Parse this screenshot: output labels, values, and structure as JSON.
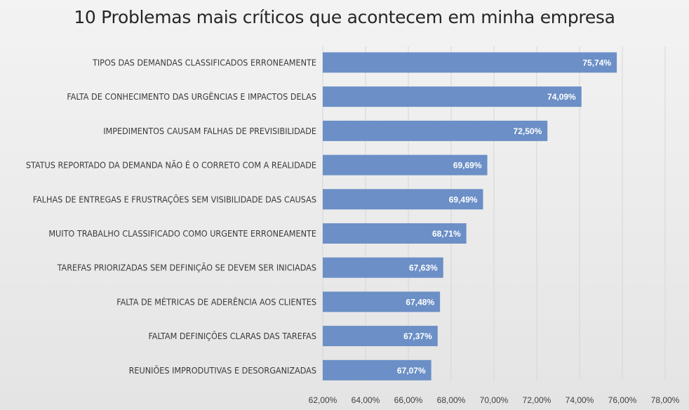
{
  "chart_data": {
    "type": "bar",
    "orientation": "horizontal",
    "title": "10 Problemas mais críticos que acontecem em minha empresa",
    "categories": [
      "TIPOS DAS DEMANDAS CLASSIFICADOS ERRONEAMENTE",
      "FALTA DE CONHECIMENTO DAS URGÊNCIAS E IMPACTOS DELAS",
      "IMPEDIMENTOS CAUSAM FALHAS DE PREVISIBILIDADE",
      "STATUS REPORTADO DA DEMANDA NÃO É O CORRETO COM A REALIDADE",
      "FALHAS DE ENTREGAS E FRUSTRAÇÕES SEM VISIBILIDADE DAS CAUSAS",
      "MUITO TRABALHO CLASSIFICADO COMO URGENTE ERRONEAMENTE",
      "TAREFAS PRIORIZADAS SEM DEFINIÇÃO SE DEVEM SER INICIADAS",
      "FALTA DE MÉTRICAS DE ADERÊNCIA AOS CLIENTES",
      "FALTAM DEFINIÇÕES CLARAS DAS TAREFAS",
      "REUNIÕES IMPRODUTIVAS E DESORGANIZADAS"
    ],
    "values": [
      75.74,
      74.09,
      72.5,
      69.69,
      69.49,
      68.71,
      67.63,
      67.48,
      67.37,
      67.07
    ],
    "data_labels": [
      "75,74%",
      "74,09%",
      "72,50%",
      "69,69%",
      "69,49%",
      "68,71%",
      "67,63%",
      "67,48%",
      "67,37%",
      "67,07%"
    ],
    "xlim": [
      62,
      78
    ],
    "xticks": [
      62,
      64,
      66,
      68,
      70,
      72,
      74,
      76,
      78
    ],
    "xtick_labels": [
      "62,00%",
      "64,00%",
      "66,00%",
      "68,00%",
      "70,00%",
      "72,00%",
      "74,00%",
      "76,00%",
      "78,00%"
    ],
    "xlabel": "",
    "ylabel": "",
    "grid": "vertical",
    "legend": "none",
    "bar_color": "#6b8fc6",
    "gridline_color": "#d6d6d6"
  }
}
